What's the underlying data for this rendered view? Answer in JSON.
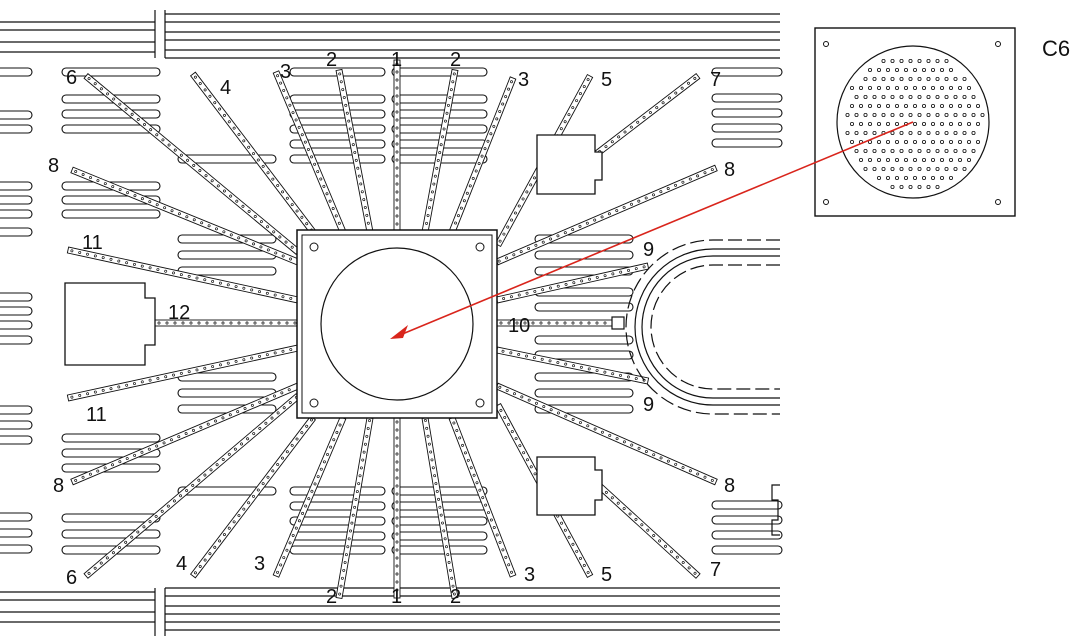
{
  "diagram": {
    "title": "",
    "detail_label": "C6",
    "strip_labels": {
      "l1_top": "1",
      "l1_bottom": "1",
      "l2_top_left": "2",
      "l2_top_right": "2",
      "l2_bottom_left": "2",
      "l2_bottom_right": "2",
      "l3_top_left": "3",
      "l3_top_right": "3",
      "l3_bottom_left": "3",
      "l3_bottom_right": "3",
      "l4_top": "4",
      "l4_bottom": "4",
      "l5_top": "5",
      "l5_bottom": "5",
      "l6_top": "6",
      "l6_bottom": "6",
      "l7_top": "7",
      "l7_bottom": "7",
      "l8_top_left": "8",
      "l8_bottom_left": "8",
      "l8_top_right": "8",
      "l8_bottom_right": "8",
      "l9_top": "9",
      "l9_bottom": "9",
      "l10": "10",
      "l11_top": "11",
      "l11_bottom": "11",
      "l12": "12"
    },
    "arrow_color": "#d9251c",
    "line_color": "#111111"
  }
}
